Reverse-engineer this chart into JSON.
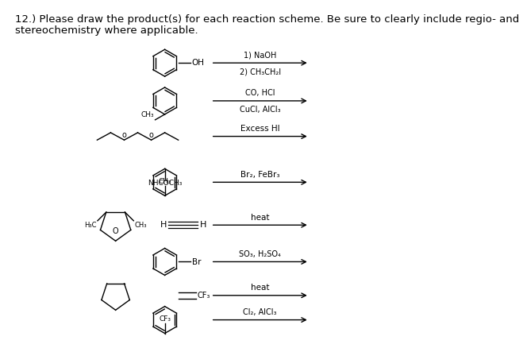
{
  "title_line1": "12.) Please draw the product(s) for each reaction scheme. Be sure to clearly include regio- and",
  "title_line2": "stereochemistry where applicable.",
  "bg_color": "#ffffff",
  "text_color": "#000000",
  "font_size_title": 9.5,
  "font_size_label": 7.5,
  "font_size_small": 6.5,
  "reactions": [
    {
      "label1": "1) NaOH",
      "label2": "2) CH₃CH₂I"
    },
    {
      "label1": "CO, HCl",
      "label2": "CuCl, AlCl₃"
    },
    {
      "label1": "Excess HI",
      "label2": ""
    },
    {
      "label1": "Br₂, FeBr₃",
      "label2": ""
    },
    {
      "label1": "heat",
      "label2": ""
    },
    {
      "label1": "SO₃, H₂SO₄",
      "label2": ""
    },
    {
      "label1": "heat",
      "label2": ""
    },
    {
      "label1": "Cl₂, AlCl₃",
      "label2": ""
    }
  ]
}
